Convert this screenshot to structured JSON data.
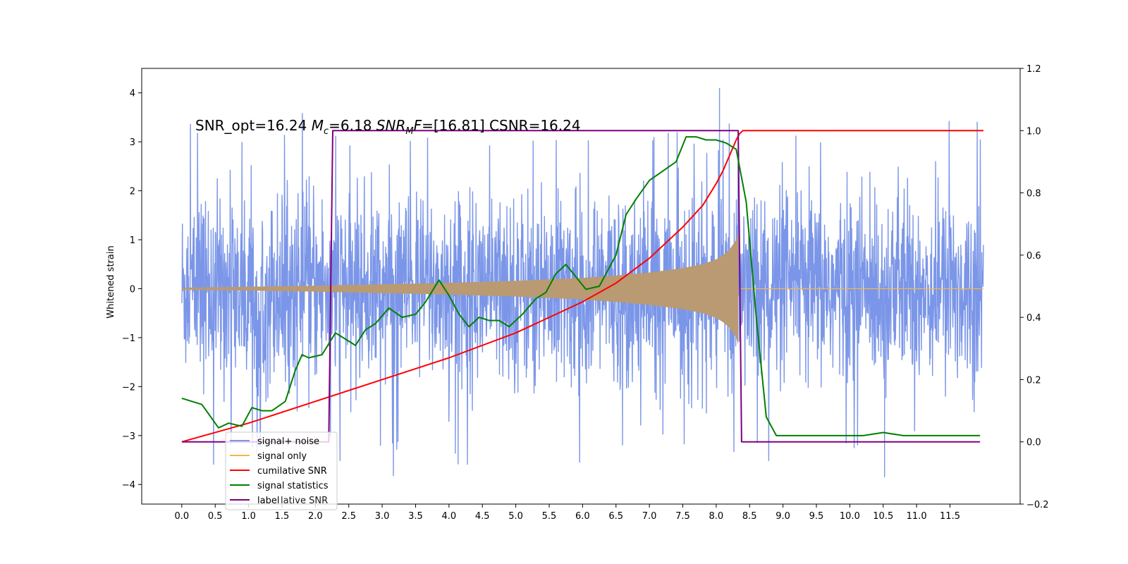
{
  "chart_data": {
    "type": "line",
    "title": "",
    "xlabel": "",
    "ylabel": "Whitened strain",
    "xlim": [
      -0.6,
      12.55
    ],
    "ylim": [
      -4.4,
      4.5
    ],
    "y2lim": [
      -0.2,
      1.2
    ],
    "x_ticks": [
      0.0,
      0.5,
      1.0,
      1.5,
      2.0,
      2.5,
      3.0,
      3.5,
      4.0,
      4.5,
      5.0,
      5.5,
      6.0,
      6.5,
      7.0,
      7.5,
      8.0,
      8.5,
      9.0,
      9.5,
      10.0,
      10.5,
      11.0,
      11.5
    ],
    "x_tick_labels": [
      "0.0",
      "0.5",
      "1.0",
      "1.5",
      "2.0",
      "2.5",
      "3.0",
      "3.5",
      "4.0",
      "4.5",
      "5.0",
      "5.5",
      "6.0",
      "6.5",
      "7.0",
      "7.5",
      "8.0",
      "8.5",
      "9.0",
      "9.5",
      "10.0",
      "10.5",
      "11.0",
      "11.5"
    ],
    "y_ticks": [
      -4,
      -3,
      -2,
      -1,
      0,
      1,
      2,
      3,
      4
    ],
    "y_tick_labels": [
      "−4",
      "−3",
      "−2",
      "−1",
      "0",
      "1",
      "2",
      "3",
      "4"
    ],
    "y2_ticks": [
      -0.2,
      0.0,
      0.2,
      0.4,
      0.6,
      0.8,
      1.0,
      1.2
    ],
    "y2_tick_labels": [
      "−0.2",
      "0.0",
      "0.2",
      "0.4",
      "0.6",
      "0.8",
      "1.0",
      "1.2"
    ],
    "grid": false,
    "legend_position": "lower-left",
    "annotation": {
      "p1": "SNR_opt=16.24 ",
      "p2": "M",
      "p3": "c",
      "p4": "=6.18    ",
      "p5": "SNR",
      "p6": "M",
      "p7": "F",
      "p8": "=[16.81] CSNR=16.24"
    },
    "series": [
      {
        "name": "signal+ noise",
        "color": "#7b96e8",
        "axis": "left",
        "kind": "noise-band",
        "x_range": [
          0.0,
          12.0
        ],
        "typical_amplitude": 1.5,
        "max": 4.1,
        "min": -3.85
      },
      {
        "name": "signal only",
        "color": "#f5b54a",
        "fill_color": "#b99a72",
        "axis": "left",
        "kind": "chirp-envelope",
        "envelope_x": [
          0.0,
          1.0,
          2.0,
          3.0,
          4.0,
          5.0,
          6.0,
          6.5,
          7.0,
          7.5,
          7.8,
          8.0,
          8.1,
          8.2,
          8.3,
          8.33
        ],
        "envelope_y": [
          0.02,
          0.04,
          0.06,
          0.09,
          0.12,
          0.16,
          0.22,
          0.27,
          0.33,
          0.42,
          0.5,
          0.6,
          0.68,
          0.8,
          1.0,
          1.15
        ]
      },
      {
        "name": "cumilative SNR",
        "color": "#ff0000",
        "axis": "right",
        "x": [
          0.0,
          1.0,
          2.0,
          3.0,
          4.0,
          5.0,
          6.0,
          6.5,
          7.0,
          7.5,
          7.8,
          8.0,
          8.1,
          8.2,
          8.3,
          8.35,
          8.4,
          12.0
        ],
        "values": [
          0.0,
          0.06,
          0.13,
          0.2,
          0.27,
          0.35,
          0.45,
          0.51,
          0.59,
          0.69,
          0.76,
          0.83,
          0.87,
          0.92,
          0.97,
          0.99,
          1.0,
          1.0
        ]
      },
      {
        "name": "signal statistics",
        "color": "#008000",
        "axis": "right",
        "x": [
          0.0,
          0.3,
          0.4,
          0.55,
          0.7,
          0.9,
          1.05,
          1.2,
          1.35,
          1.55,
          1.7,
          1.8,
          1.9,
          2.1,
          2.3,
          2.45,
          2.6,
          2.75,
          2.9,
          3.1,
          3.3,
          3.5,
          3.65,
          3.85,
          4.0,
          4.15,
          4.3,
          4.45,
          4.6,
          4.75,
          4.9,
          5.1,
          5.3,
          5.45,
          5.6,
          5.75,
          5.9,
          6.05,
          6.25,
          6.4,
          6.5,
          6.65,
          6.8,
          7.0,
          7.2,
          7.4,
          7.55,
          7.7,
          7.85,
          8.0,
          8.15,
          8.3,
          8.45,
          8.6,
          8.75,
          8.9,
          9.1,
          9.3,
          9.6,
          9.9,
          10.2,
          10.5,
          10.8,
          11.1,
          11.4,
          11.7,
          11.95
        ],
        "values": [
          0.14,
          0.12,
          0.09,
          0.045,
          0.06,
          0.05,
          0.11,
          0.1,
          0.1,
          0.13,
          0.23,
          0.28,
          0.27,
          0.28,
          0.35,
          0.33,
          0.31,
          0.36,
          0.38,
          0.43,
          0.4,
          0.41,
          0.45,
          0.52,
          0.47,
          0.41,
          0.37,
          0.4,
          0.39,
          0.39,
          0.37,
          0.41,
          0.46,
          0.48,
          0.54,
          0.57,
          0.53,
          0.49,
          0.5,
          0.56,
          0.6,
          0.73,
          0.78,
          0.84,
          0.87,
          0.9,
          0.98,
          0.98,
          0.97,
          0.97,
          0.96,
          0.94,
          0.77,
          0.4,
          0.08,
          0.02,
          0.02,
          0.02,
          0.02,
          0.02,
          0.02,
          0.03,
          0.02,
          0.02,
          0.02,
          0.02,
          0.02
        ]
      },
      {
        "name": "label",
        "color": "#800080",
        "axis": "right",
        "x": [
          0.0,
          2.2,
          2.26,
          8.33,
          8.38,
          11.95
        ],
        "values": [
          0.0,
          0.0,
          1.0,
          1.0,
          0.0,
          0.0
        ]
      }
    ],
    "legend_extra_text": "lative SNR"
  }
}
